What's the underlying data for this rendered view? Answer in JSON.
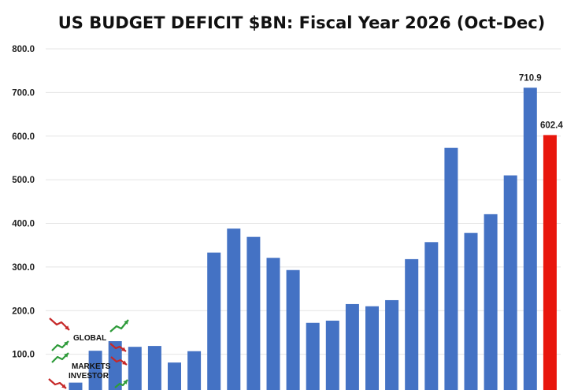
{
  "chart_data": {
    "type": "bar",
    "title": "US BUDGET DEFICIT $BN: Fiscal Year 2026 (Oct-Dec)",
    "xlabel": "",
    "ylabel": "",
    "ylim": [
      0,
      800
    ],
    "y_ticks": [
      "800.0",
      "700.0",
      "600.0",
      "500.0",
      "400.0",
      "300.0",
      "200.0",
      "100.0"
    ],
    "grid": true,
    "values": [
      35,
      108,
      130,
      117,
      119,
      81,
      107,
      333,
      388,
      369,
      321,
      293,
      172,
      177,
      215,
      210,
      224,
      318,
      357,
      573,
      378,
      421,
      510,
      710.9,
      602.4
    ],
    "colors": {
      "default": "#4472c4",
      "highlight": "#e8160c"
    },
    "highlight_index": 24,
    "data_labels": [
      {
        "index": 23,
        "text": "710.9"
      },
      {
        "index": 24,
        "text": "602.4"
      }
    ]
  },
  "watermark": {
    "labels": [
      "GLOBAL",
      "MARKETS",
      "INVESTOR"
    ],
    "colors": {
      "down": "#c62828",
      "up": "#2e9b3a"
    }
  }
}
